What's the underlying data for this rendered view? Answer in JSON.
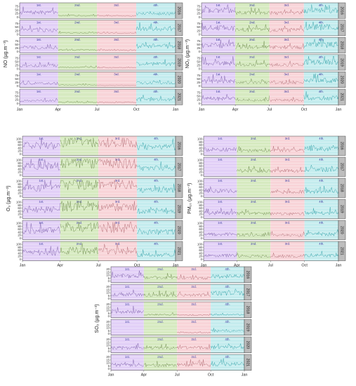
{
  "colors": {
    "q1": "#e2d0f7",
    "q2": "#d6eac0",
    "q3": "#f8d4d8",
    "q4": "#c4ecee",
    "strip": "#bdbdbd",
    "series": {
      "q1": "#7b5ea8",
      "q2": "#6e8a4e",
      "q3": "#b06a72",
      "q4": "#2f9fa6"
    }
  },
  "chart_data": [
    {
      "type": "line",
      "id": "no",
      "ylabel": "NO (µg.m⁻³)",
      "yticks": [
        0,
        25,
        50,
        75
      ],
      "ylim": [
        0,
        90
      ],
      "x_ticks": [
        "Jan",
        "Apr",
        "Jul",
        "Oct",
        "Jan"
      ],
      "quarters": [
        "1st.",
        "2nd.",
        "3rd.",
        "4th."
      ],
      "panels": [
        "2016",
        "2017",
        "2018",
        "2019",
        "2020",
        "2021"
      ],
      "typical_level_by_quarter": [
        [
          32,
          10,
          8,
          24
        ],
        [
          28,
          10,
          8,
          40
        ],
        [
          30,
          12,
          10,
          38
        ],
        [
          22,
          10,
          8,
          34
        ],
        [
          20,
          8,
          6,
          24
        ],
        [
          18,
          8,
          6,
          26
        ]
      ]
    },
    {
      "type": "line",
      "id": "no2",
      "ylabel": "NO₂ (µg.m⁻³)",
      "yticks": [
        0,
        25,
        50,
        75
      ],
      "ylim": [
        0,
        90
      ],
      "x_ticks": [
        "Jan",
        "Apr",
        "Jul",
        "Oct",
        "Jan"
      ],
      "quarters": [
        "1st.",
        "2nd.",
        "3rd.",
        "4th."
      ],
      "panels": [
        "2016",
        "2017",
        "2018",
        "2019",
        "2020",
        "2021"
      ],
      "typical_level_by_quarter": [
        [
          48,
          30,
          28,
          45
        ],
        [
          45,
          32,
          30,
          50
        ],
        [
          44,
          33,
          30,
          48
        ],
        [
          40,
          30,
          28,
          46
        ],
        [
          36,
          25,
          24,
          40
        ],
        [
          34,
          24,
          22,
          38
        ]
      ]
    },
    {
      "type": "line",
      "id": "o3",
      "ylabel": "O₃ (µg.m⁻³)",
      "yticks": [
        0,
        20,
        40,
        60,
        80,
        100
      ],
      "ylim": [
        0,
        110
      ],
      "x_ticks": [
        "Jan",
        "Apr",
        "Jul",
        "Oct",
        "Jan"
      ],
      "quarters": [
        "1st.",
        "2nd.",
        "3rd.",
        "4th."
      ],
      "panels": [
        "2016",
        "2017",
        "2018",
        "2019",
        "2020",
        "2021"
      ],
      "typical_level_by_quarter": [
        [
          55,
          78,
          72,
          45
        ],
        [
          60,
          80,
          75,
          45
        ],
        [
          55,
          75,
          72,
          42
        ],
        [
          50,
          70,
          68,
          40
        ],
        [
          55,
          72,
          66,
          42
        ],
        [
          45,
          60,
          55,
          30
        ]
      ]
    },
    {
      "type": "line",
      "id": "pm10",
      "ylabel": "PM₁₀ (µg.m⁻³)",
      "yticks": [
        0,
        20,
        40,
        60,
        80,
        100
      ],
      "ylim": [
        0,
        110
      ],
      "x_ticks": [
        "Jan",
        "Apr",
        "Jul",
        "Oct",
        "Jan"
      ],
      "quarters": [
        "1st.",
        "2nd.",
        "3rd.",
        "4th."
      ],
      "panels": [
        "2016",
        "2017",
        "2018",
        "2019",
        "2020",
        "2021"
      ],
      "typical_level_by_quarter": [
        [
          30,
          22,
          25,
          35
        ],
        [
          0,
          30,
          28,
          38
        ],
        [
          35,
          0,
          28,
          32
        ],
        [
          28,
          25,
          22,
          30
        ],
        [
          26,
          22,
          20,
          28
        ],
        [
          25,
          20,
          20,
          24
        ]
      ]
    },
    {
      "type": "line",
      "id": "so2",
      "ylabel": "SO₂ (µg.m⁻³)",
      "yticks": [
        0,
        5,
        10,
        15,
        20
      ],
      "ylim": [
        0,
        22
      ],
      "x_ticks": [
        "Jan",
        "Apr",
        "Jul",
        "Oct",
        "Jan"
      ],
      "quarters": [
        "1st.",
        "2nd.",
        "3rd.",
        "4th."
      ],
      "panels": [
        "2016",
        "2017",
        "2018",
        "2019",
        "2020",
        "2021"
      ],
      "typical_level_by_quarter": [
        [
          8,
          6,
          5,
          8
        ],
        [
          7,
          6,
          6,
          9
        ],
        [
          8,
          3,
          2,
          3
        ],
        [
          0,
          0,
          2,
          5
        ],
        [
          6,
          6,
          6,
          7
        ],
        [
          7,
          6,
          7,
          8
        ]
      ]
    }
  ]
}
